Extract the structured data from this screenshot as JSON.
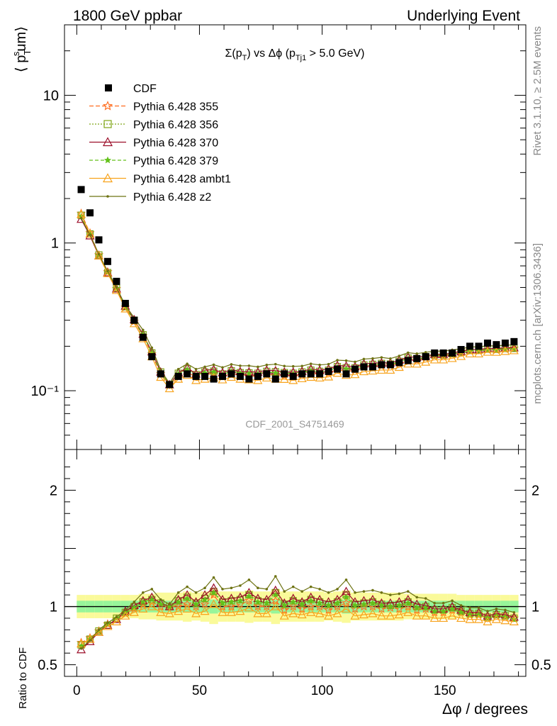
{
  "header": {
    "left": "1800 GeV ppbar",
    "right": "Underlying Event"
  },
  "side_text": {
    "rivet": "Rivet 3.1.10, ≥ 2.5M events",
    "mcplots": "mcplots.cern.ch [arXiv:1306.3436]"
  },
  "chart_data": {
    "type": "line",
    "title": "Σ(p_T) vs Δφ (p_Tj1 > 5.0 GeV)",
    "watermark": "CDF_2001_S4751469",
    "xlabel": "Δφ / degrees",
    "ylabel": "⟨ p_T^sum ⟩",
    "ratio_ylabel": "Ratio to CDF",
    "xlim": [
      -5,
      183
    ],
    "ylim": [
      0.04,
      30
    ],
    "yscale": "log",
    "ratio_ylim": [
      0.4,
      2.35
    ],
    "x_ticks": [
      0,
      50,
      100,
      150
    ],
    "y_tick_labels": [
      "10⁻¹",
      "1",
      "10"
    ],
    "ratio_tick_labels": [
      "0.5",
      "1",
      "2"
    ],
    "legend_position": "top-left",
    "x": [
      1.8,
      5.4,
      9,
      12.6,
      16.2,
      19.8,
      23.4,
      27,
      30.6,
      34.2,
      37.8,
      41.4,
      45,
      48.6,
      52.2,
      55.8,
      59.4,
      63,
      66.6,
      70.2,
      73.8,
      77.4,
      81,
      84.6,
      88.2,
      91.8,
      95.4,
      99,
      102.6,
      106.2,
      109.8,
      113.4,
      117,
      120.6,
      124.2,
      127.8,
      131.4,
      135,
      138.6,
      142.2,
      145.8,
      149.4,
      153,
      156.6,
      160.2,
      163.8,
      167.4,
      171,
      174.6,
      178.2
    ],
    "cdf": [
      2.3,
      1.6,
      1.05,
      0.75,
      0.55,
      0.39,
      0.3,
      0.23,
      0.17,
      0.13,
      0.11,
      0.125,
      0.13,
      0.125,
      0.125,
      0.12,
      0.125,
      0.13,
      0.125,
      0.12,
      0.125,
      0.13,
      0.12,
      0.13,
      0.125,
      0.13,
      0.13,
      0.13,
      0.135,
      0.14,
      0.13,
      0.14,
      0.145,
      0.145,
      0.15,
      0.15,
      0.155,
      0.16,
      0.165,
      0.17,
      0.18,
      0.18,
      0.18,
      0.19,
      0.2,
      0.2,
      0.21,
      0.205,
      0.21,
      0.215
    ],
    "ratio_band_inner": [
      0.05,
      0.05,
      0.05,
      0.05,
      0.05,
      0.05,
      0.05,
      0.05,
      0.05,
      0.05,
      0.05,
      0.05,
      0.05,
      0.05,
      0.05,
      0.06,
      0.05,
      0.05,
      0.05,
      0.05,
      0.05,
      0.05,
      0.06,
      0.05,
      0.05,
      0.05,
      0.05,
      0.05,
      0.05,
      0.05,
      0.06,
      0.05,
      0.05,
      0.05,
      0.05,
      0.05,
      0.05,
      0.05,
      0.05,
      0.05,
      0.05,
      0.05,
      0.05,
      0.05,
      0.05,
      0.05,
      0.05,
      0.05,
      0.05,
      0.05
    ],
    "ratio_band_outer": [
      0.1,
      0.1,
      0.1,
      0.1,
      0.1,
      0.1,
      0.1,
      0.11,
      0.11,
      0.12,
      0.12,
      0.12,
      0.13,
      0.12,
      0.13,
      0.15,
      0.13,
      0.13,
      0.13,
      0.14,
      0.13,
      0.13,
      0.15,
      0.13,
      0.13,
      0.13,
      0.13,
      0.13,
      0.12,
      0.13,
      0.14,
      0.12,
      0.12,
      0.12,
      0.12,
      0.12,
      0.12,
      0.11,
      0.11,
      0.11,
      0.11,
      0.11,
      0.11,
      0.1,
      0.1,
      0.1,
      0.1,
      0.1,
      0.1,
      0.1
    ],
    "series": [
      {
        "name": "Pythia 6.428 355",
        "color": "#ff6d1f",
        "dash": "6,3",
        "marker": "star",
        "ratio": [
          0.69,
          0.73,
          0.79,
          0.85,
          0.89,
          0.94,
          0.98,
          1.02,
          1.04,
          1.0,
          1.0,
          1.0,
          1.02,
          1.0,
          1.02,
          1.1,
          1.0,
          1.0,
          1.02,
          1.05,
          1.0,
          1.0,
          1.05,
          0.97,
          1.0,
          0.98,
          1.0,
          1.0,
          0.97,
          1.0,
          1.03,
          0.98,
          1.0,
          1.0,
          0.98,
          0.99,
          0.98,
          1.0,
          0.97,
          0.98,
          0.95,
          0.95,
          0.97,
          0.95,
          0.93,
          0.93,
          0.9,
          0.92,
          0.91,
          0.9
        ]
      },
      {
        "name": "Pythia 6.428 356",
        "color": "#7fa516",
        "dash": "2,2",
        "marker": "square",
        "ratio": [
          0.67,
          0.72,
          0.79,
          0.84,
          0.9,
          0.95,
          1.0,
          1.04,
          1.06,
          1.03,
          1.0,
          1.05,
          1.08,
          1.03,
          1.07,
          1.13,
          1.04,
          1.05,
          1.06,
          1.1,
          1.05,
          1.04,
          1.12,
          1.02,
          1.05,
          1.03,
          1.06,
          1.04,
          1.02,
          1.04,
          1.1,
          1.02,
          1.03,
          1.04,
          1.02,
          1.01,
          1.02,
          1.04,
          1.0,
          1.0,
          0.97,
          0.97,
          0.99,
          0.96,
          0.94,
          0.94,
          0.91,
          0.93,
          0.92,
          0.9
        ]
      },
      {
        "name": "Pythia 6.428 370",
        "color": "#9c0f2a",
        "dash": "",
        "marker": "triangle",
        "ratio": [
          0.63,
          0.7,
          0.78,
          0.84,
          0.89,
          0.96,
          1.01,
          1.05,
          1.08,
          1.03,
          1.0,
          1.06,
          1.1,
          1.04,
          1.1,
          1.16,
          1.06,
          1.07,
          1.08,
          1.12,
          1.07,
          1.06,
          1.14,
          1.03,
          1.07,
          1.04,
          1.08,
          1.06,
          1.04,
          1.06,
          1.13,
          1.04,
          1.05,
          1.06,
          1.03,
          1.03,
          1.04,
          1.06,
          1.02,
          1.01,
          0.98,
          0.98,
          1.0,
          0.97,
          0.95,
          0.95,
          0.92,
          0.94,
          0.93,
          0.91
        ]
      },
      {
        "name": "Pythia 6.428 379",
        "color": "#63c11a",
        "dash": "5,3",
        "marker": "smallstar",
        "ratio": [
          0.66,
          0.72,
          0.79,
          0.85,
          0.9,
          0.95,
          0.99,
          1.04,
          1.06,
          1.02,
          1.0,
          1.04,
          1.07,
          1.02,
          1.06,
          1.12,
          1.03,
          1.04,
          1.05,
          1.09,
          1.04,
          1.03,
          1.1,
          1.01,
          1.04,
          1.02,
          1.05,
          1.03,
          1.01,
          1.03,
          1.08,
          1.01,
          1.02,
          1.03,
          1.01,
          1.0,
          1.01,
          1.03,
          0.99,
          0.99,
          0.96,
          0.96,
          0.98,
          0.95,
          0.93,
          0.93,
          0.9,
          0.92,
          0.91,
          0.89
        ]
      },
      {
        "name": "Pythia 6.428 ambt1",
        "color": "#f8a31c",
        "dash": "",
        "marker": "triangle",
        "ratio": [
          0.68,
          0.72,
          0.78,
          0.83,
          0.87,
          0.92,
          0.95,
          0.98,
          1.0,
          0.95,
          0.94,
          0.96,
          0.98,
          0.94,
          0.96,
          1.02,
          0.95,
          0.95,
          0.96,
          0.99,
          0.94,
          0.94,
          1.0,
          0.92,
          0.94,
          0.93,
          0.95,
          0.94,
          0.92,
          0.94,
          0.98,
          0.92,
          0.93,
          0.94,
          0.92,
          0.92,
          0.93,
          0.95,
          0.92,
          0.92,
          0.9,
          0.9,
          0.92,
          0.9,
          0.89,
          0.89,
          0.87,
          0.89,
          0.88,
          0.87
        ]
      },
      {
        "name": "Pythia 6.428 z2",
        "color": "#6e7313",
        "dash": "",
        "marker": "dot",
        "ratio": [
          0.64,
          0.71,
          0.8,
          0.86,
          0.91,
          0.97,
          1.04,
          1.12,
          1.15,
          1.06,
          1.02,
          1.12,
          1.17,
          1.12,
          1.16,
          1.25,
          1.15,
          1.16,
          1.18,
          1.23,
          1.16,
          1.15,
          1.26,
          1.13,
          1.17,
          1.13,
          1.17,
          1.15,
          1.12,
          1.15,
          1.23,
          1.12,
          1.13,
          1.14,
          1.12,
          1.1,
          1.11,
          1.13,
          1.08,
          1.07,
          1.03,
          1.03,
          1.05,
          1.01,
          0.99,
          0.99,
          0.96,
          0.98,
          0.97,
          0.95
        ]
      }
    ]
  }
}
